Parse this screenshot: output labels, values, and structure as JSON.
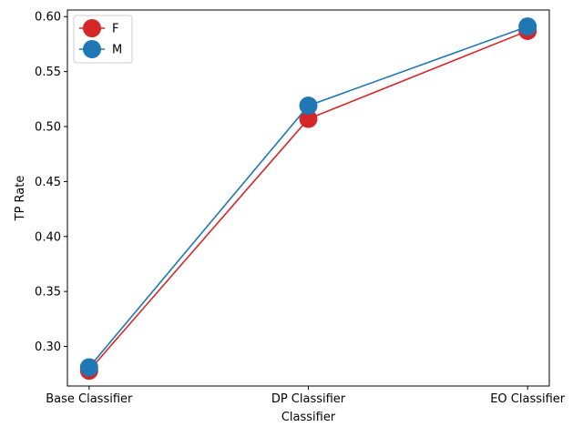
{
  "chart_data": {
    "type": "line",
    "categories": [
      "Base Classifier",
      "DP Classifier",
      "EO Classifier"
    ],
    "series": [
      {
        "name": "F",
        "values": [
          0.278,
          0.507,
          0.587
        ],
        "color": "#d62728"
      },
      {
        "name": "M",
        "values": [
          0.281,
          0.519,
          0.591
        ],
        "color": "#1f77b4"
      }
    ],
    "xlabel": "Classifier",
    "ylabel": "TP Rate",
    "ylim": [
      0.264,
      0.606
    ],
    "yticks": [
      "0.30",
      "0.35",
      "0.40",
      "0.45",
      "0.50",
      "0.55",
      "0.60"
    ],
    "grid": false,
    "legend_position": "top-left"
  }
}
